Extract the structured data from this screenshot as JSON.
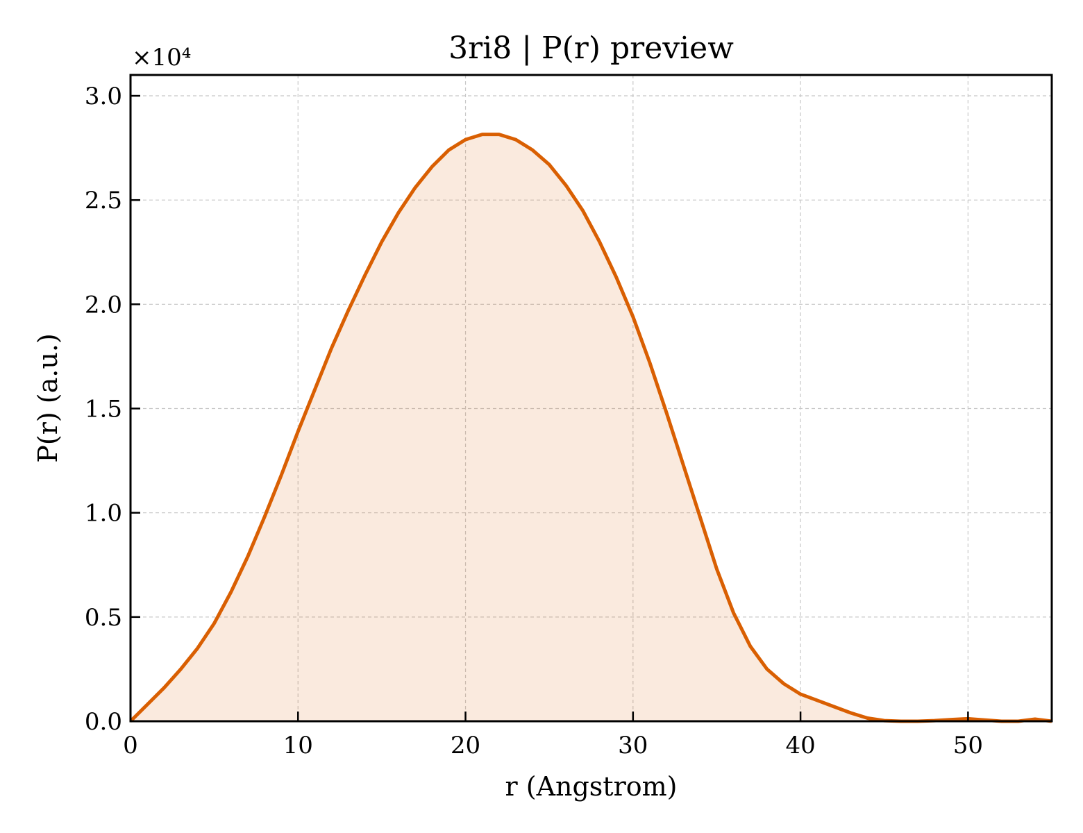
{
  "colors": {
    "line": "#d95f02",
    "fill": "#d95f02",
    "axes": "#000000",
    "grid": "#c8c8c8"
  },
  "chart_data": {
    "type": "area",
    "title": "3ri8 | P(r) preview",
    "xlabel": "r (Angstrom)",
    "ylabel": "P(r) (a.u.)",
    "y_offset_label": "×10⁴",
    "xlim": [
      0,
      55
    ],
    "ylim": [
      0,
      31000
    ],
    "x_ticks": [
      0,
      10,
      20,
      30,
      40,
      50
    ],
    "x_tick_labels": [
      "0",
      "10",
      "20",
      "30",
      "40",
      "50"
    ],
    "y_ticks": [
      0,
      5000,
      10000,
      15000,
      20000,
      25000,
      30000
    ],
    "y_tick_labels": [
      "0.0",
      "0.5",
      "1.0",
      "1.5",
      "2.0",
      "2.5",
      "3.0"
    ],
    "grid": true,
    "fill_alpha": 0.13,
    "series": [
      {
        "x": [
          0,
          1,
          2,
          3,
          4,
          5,
          6,
          7,
          8,
          9,
          10,
          11,
          12,
          13,
          14,
          15,
          16,
          17,
          18,
          19,
          20,
          21,
          22,
          23,
          24,
          25,
          26,
          27,
          28,
          29,
          30,
          31,
          32,
          33,
          34,
          35,
          36,
          37,
          38,
          39,
          40,
          41,
          42,
          43,
          44,
          45,
          46,
          47,
          48,
          49,
          50,
          51,
          52,
          53,
          54,
          55
        ],
        "y": [
          0,
          800,
          1600,
          2500,
          3500,
          4700,
          6200,
          7900,
          9800,
          11800,
          13900,
          15900,
          17900,
          19700,
          21400,
          23000,
          24400,
          25600,
          26600,
          27400,
          27900,
          28150,
          28150,
          27900,
          27400,
          26700,
          25700,
          24500,
          23000,
          21300,
          19400,
          17200,
          14800,
          12300,
          9800,
          7300,
          5200,
          3600,
          2500,
          1800,
          1300,
          1000,
          700,
          400,
          150,
          30,
          -30,
          0,
          30,
          80,
          120,
          60,
          -20,
          0,
          100,
          0
        ]
      }
    ]
  }
}
